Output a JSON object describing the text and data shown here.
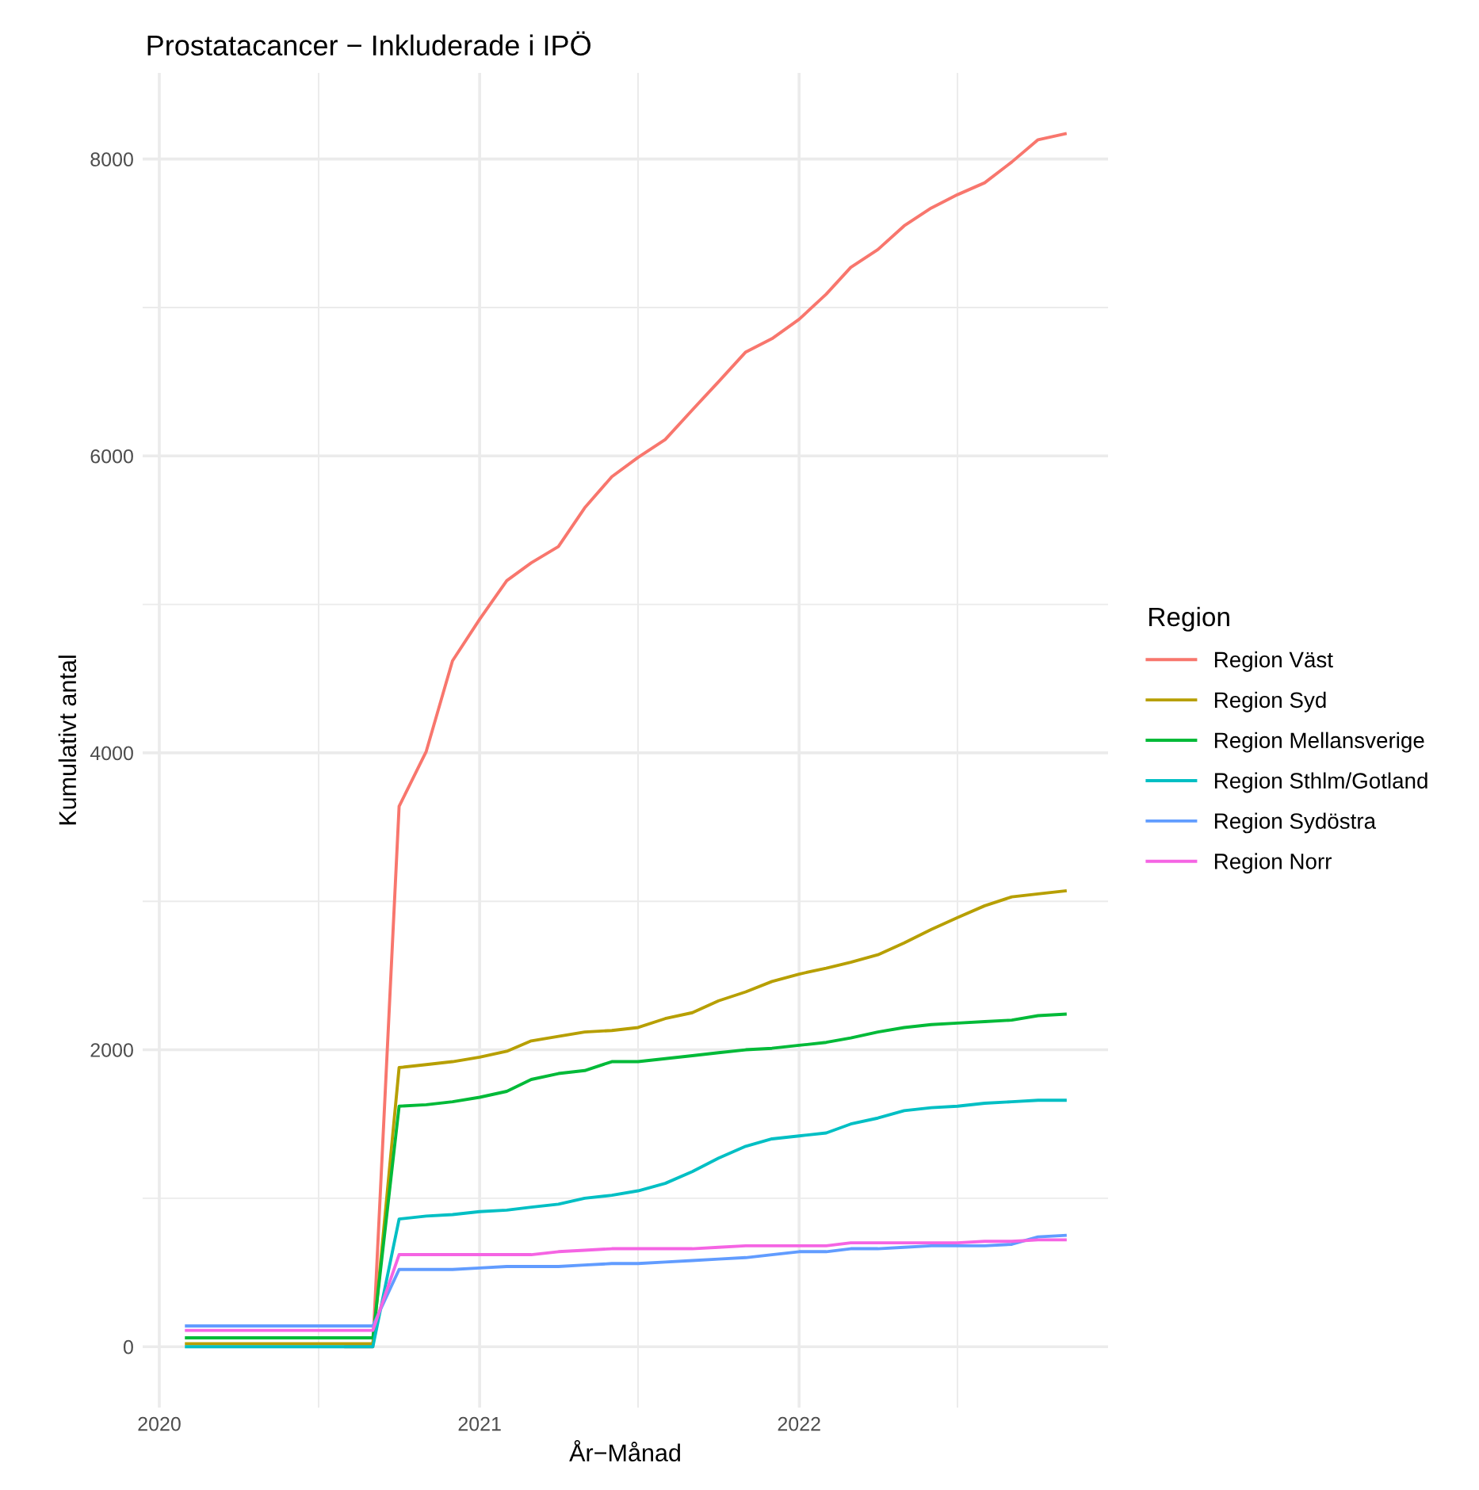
{
  "chart_data": {
    "type": "line",
    "title": "Prostatacancer − Inkluderade i IPÖ",
    "xlabel": "År−Månad",
    "ylabel": "Kumulativt antal",
    "legend_title": "Region",
    "legend": "right",
    "grid": true,
    "marker": "none",
    "line_style": "solid",
    "x": [
      "2020-02",
      "2020-03",
      "2020-04",
      "2020-05",
      "2020-06",
      "2020-07",
      "2020-08",
      "2020-09",
      "2020-10",
      "2020-11",
      "2020-12",
      "2021-01",
      "2021-02",
      "2021-03",
      "2021-04",
      "2021-05",
      "2021-06",
      "2021-07",
      "2021-08",
      "2021-09",
      "2021-10",
      "2021-11",
      "2021-12",
      "2022-01",
      "2022-02",
      "2022-03",
      "2022-04",
      "2022-05",
      "2022-06",
      "2022-07",
      "2022-08",
      "2022-09",
      "2022-10",
      "2022-11"
    ],
    "xlim": [
      "2019-12-13",
      "2022-12-20"
    ],
    "xticks": [
      {
        "value": "2020-01",
        "label": "2020"
      },
      {
        "value": "2020-07",
        "label": null
      },
      {
        "value": "2021-01",
        "label": "2021"
      },
      {
        "value": "2021-07",
        "label": null
      },
      {
        "value": "2022-01",
        "label": "2022"
      },
      {
        "value": "2022-07",
        "label": null
      }
    ],
    "ylim": [
      -410,
      8580
    ],
    "yticks": [
      0,
      {
        "value": 1000,
        "label": null
      },
      2000,
      {
        "value": 3000,
        "label": null
      },
      4000,
      {
        "value": 5000,
        "label": null
      },
      6000,
      {
        "value": 7000,
        "label": null
      },
      8000
    ],
    "series": [
      {
        "name": "Region Väst",
        "color": "#f8766d",
        "values": [
          null,
          null,
          null,
          null,
          null,
          null,
          0,
          0,
          3640,
          4010,
          4620,
          4900,
          5160,
          5280,
          5390,
          5650,
          5860,
          5990,
          6110,
          6310,
          6500,
          6700,
          6790,
          6920,
          7090,
          7270,
          7390,
          7550,
          7670,
          7760,
          7840,
          7980,
          8130,
          8170
        ]
      },
      {
        "name": "Region Syd",
        "color": "#b79f00",
        "values": [
          20,
          20,
          20,
          20,
          20,
          20,
          20,
          20,
          1880,
          1900,
          1920,
          1950,
          1990,
          2060,
          2090,
          2120,
          2130,
          2150,
          2210,
          2250,
          2330,
          2390,
          2460,
          2510,
          2550,
          2590,
          2640,
          2720,
          2810,
          2890,
          2970,
          3030,
          3050,
          3070
        ]
      },
      {
        "name": "Region Mellansverige",
        "color": "#00ba38",
        "values": [
          60,
          60,
          60,
          60,
          60,
          60,
          60,
          60,
          1620,
          1630,
          1650,
          1680,
          1720,
          1800,
          1840,
          1860,
          1920,
          1920,
          1940,
          1960,
          1980,
          2000,
          2010,
          2030,
          2050,
          2080,
          2120,
          2150,
          2170,
          2180,
          2190,
          2200,
          2230,
          2240
        ]
      },
      {
        "name": "Region Sthlm/Gotland",
        "color": "#00bfc4",
        "values": [
          0,
          0,
          0,
          0,
          0,
          0,
          0,
          0,
          860,
          880,
          890,
          910,
          920,
          940,
          960,
          1000,
          1020,
          1050,
          1100,
          1180,
          1270,
          1350,
          1400,
          1420,
          1440,
          1500,
          1540,
          1590,
          1610,
          1620,
          1640,
          1650,
          1660,
          1660
        ]
      },
      {
        "name": "Region Sydöstra",
        "color": "#619cff",
        "values": [
          140,
          140,
          140,
          140,
          140,
          140,
          140,
          140,
          520,
          520,
          520,
          530,
          540,
          540,
          540,
          550,
          560,
          560,
          570,
          580,
          590,
          600,
          620,
          640,
          640,
          660,
          660,
          670,
          680,
          680,
          680,
          690,
          740,
          750
        ]
      },
      {
        "name": "Region Norr",
        "color": "#f564e3",
        "values": [
          110,
          110,
          110,
          110,
          110,
          110,
          110,
          110,
          620,
          620,
          620,
          620,
          620,
          620,
          640,
          650,
          660,
          660,
          660,
          660,
          670,
          680,
          680,
          680,
          680,
          700,
          700,
          700,
          700,
          700,
          710,
          710,
          720,
          720
        ]
      }
    ]
  }
}
